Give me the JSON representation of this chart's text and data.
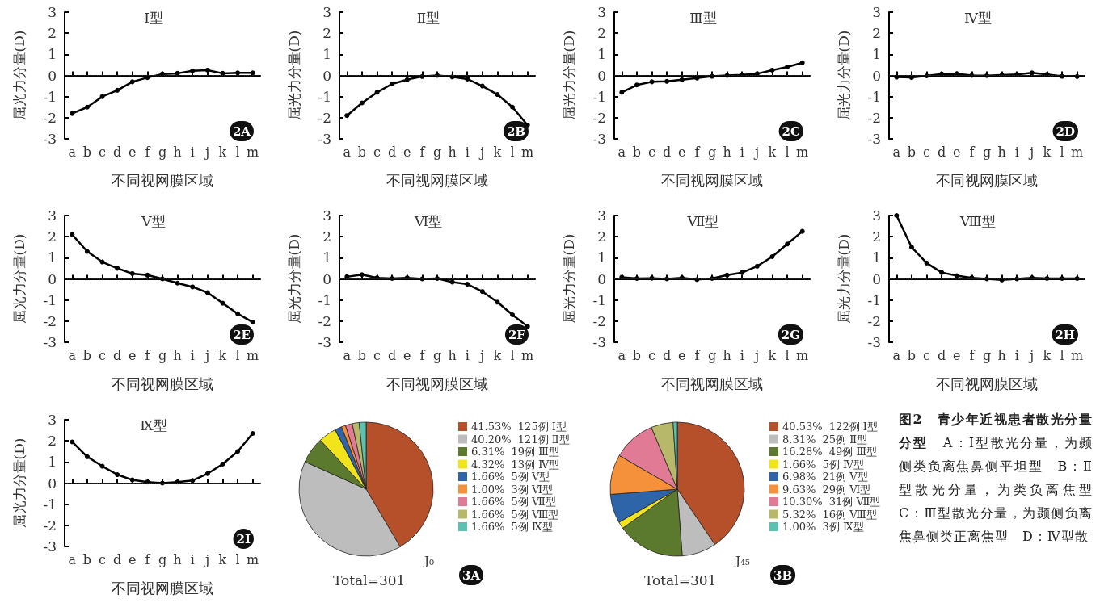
{
  "chart_data": [
    {
      "type": "line",
      "title": "Ⅰ型",
      "xlabel": "不同视网膜区域",
      "ylabel": "屈光力分量(D)",
      "categories": [
        "a",
        "b",
        "c",
        "d",
        "e",
        "f",
        "g",
        "h",
        "i",
        "j",
        "k",
        "l",
        "m"
      ],
      "values": [
        -1.8,
        -1.5,
        -1.0,
        -0.7,
        -0.3,
        -0.1,
        0.07,
        0.1,
        0.22,
        0.25,
        0.1,
        0.12,
        0.12
      ],
      "color": "#000000",
      "ylim": [
        -3,
        3
      ],
      "yticks": [
        -3,
        -2,
        -1,
        0,
        1,
        2,
        3
      ],
      "marker": "circle",
      "ref_lines": [
        {
          "axis": "y",
          "value": 0,
          "line_style": "dotted"
        }
      ],
      "annotations": [
        "2A"
      ]
    },
    {
      "type": "line",
      "title": "Ⅱ型",
      "xlabel": "不同视网膜区域",
      "ylabel": "屈光力分量(D)",
      "categories": [
        "a",
        "b",
        "c",
        "d",
        "e",
        "f",
        "g",
        "h",
        "i",
        "j",
        "k",
        "l",
        "m"
      ],
      "values": [
        -1.9,
        -1.3,
        -0.8,
        -0.4,
        -0.2,
        -0.05,
        0,
        -0.07,
        -0.17,
        -0.5,
        -0.9,
        -1.5,
        -2.35
      ],
      "color": "#000000",
      "ylim": [
        -3,
        3
      ],
      "yticks": [
        -3,
        -2,
        -1,
        0,
        1,
        2,
        3
      ],
      "marker": "circle",
      "ref_lines": [
        {
          "axis": "y",
          "value": 0,
          "line_style": "dotted"
        }
      ],
      "annotations": [
        "2B"
      ]
    },
    {
      "type": "line",
      "title": "Ⅲ型",
      "xlabel": "不同视网膜区域",
      "ylabel": "屈光力分量(D)",
      "categories": [
        "a",
        "b",
        "c",
        "d",
        "e",
        "f",
        "g",
        "h",
        "i",
        "j",
        "k",
        "l",
        "m"
      ],
      "values": [
        -0.8,
        -0.45,
        -0.3,
        -0.28,
        -0.2,
        -0.12,
        -0.04,
        0,
        0.03,
        0.08,
        0.25,
        0.4,
        0.6
      ],
      "color": "#000000",
      "ylim": [
        -3,
        3
      ],
      "yticks": [
        -3,
        -2,
        -1,
        0,
        1,
        2,
        3
      ],
      "marker": "circle",
      "ref_lines": [
        {
          "axis": "y",
          "value": 0,
          "line_style": "dotted"
        }
      ],
      "annotations": [
        "2C"
      ]
    },
    {
      "type": "line",
      "title": "Ⅳ型",
      "xlabel": "不同视网膜区域",
      "ylabel": "屈光力分量(D)",
      "categories": [
        "a",
        "b",
        "c",
        "d",
        "e",
        "f",
        "g",
        "h",
        "i",
        "j",
        "k",
        "l",
        "m"
      ],
      "values": [
        -0.08,
        -0.1,
        -0.02,
        0.07,
        0.08,
        0,
        -0.01,
        0.02,
        0.05,
        0.12,
        0.05,
        -0.04,
        -0.05
      ],
      "color": "#000000",
      "ylim": [
        -3,
        3
      ],
      "yticks": [
        -3,
        -2,
        -1,
        0,
        1,
        2,
        3
      ],
      "marker": "circle",
      "ref_lines": [
        {
          "axis": "y",
          "value": 0,
          "line_style": "dotted"
        }
      ],
      "annotations": [
        "2D"
      ]
    },
    {
      "type": "line",
      "title": "Ⅴ型",
      "xlabel": "不同视网膜区域",
      "ylabel": "屈光力分量(D)",
      "categories": [
        "a",
        "b",
        "c",
        "d",
        "e",
        "f",
        "g",
        "h",
        "i",
        "j",
        "k",
        "l",
        "m"
      ],
      "values": [
        2.1,
        1.3,
        0.8,
        0.5,
        0.25,
        0.18,
        0,
        -0.2,
        -0.38,
        -0.65,
        -1.15,
        -1.65,
        -2.05
      ],
      "color": "#000000",
      "ylim": [
        -3,
        3
      ],
      "yticks": [
        -3,
        -2,
        -1,
        0,
        1,
        2,
        3
      ],
      "marker": "circle",
      "ref_lines": [
        {
          "axis": "y",
          "value": 0,
          "line_style": "dotted"
        }
      ],
      "annotations": [
        "2E"
      ]
    },
    {
      "type": "line",
      "title": "Ⅵ型",
      "xlabel": "不同视网膜区域",
      "ylabel": "屈光力分量(D)",
      "categories": [
        "a",
        "b",
        "c",
        "d",
        "e",
        "f",
        "g",
        "h",
        "i",
        "j",
        "k",
        "l",
        "m"
      ],
      "values": [
        0.1,
        0.2,
        0.05,
        0.02,
        0.05,
        0,
        0.02,
        -0.15,
        -0.25,
        -0.6,
        -1.1,
        -1.7,
        -2.25
      ],
      "color": "#000000",
      "ylim": [
        -3,
        3
      ],
      "yticks": [
        -3,
        -2,
        -1,
        0,
        1,
        2,
        3
      ],
      "marker": "circle",
      "ref_lines": [
        {
          "axis": "y",
          "value": 0,
          "line_style": "dotted"
        }
      ],
      "annotations": [
        "2F"
      ]
    },
    {
      "type": "line",
      "title": "Ⅶ型",
      "xlabel": "不同视网膜区域",
      "ylabel": "屈光力分量(D)",
      "categories": [
        "a",
        "b",
        "c",
        "d",
        "e",
        "f",
        "g",
        "h",
        "i",
        "j",
        "k",
        "l",
        "m"
      ],
      "values": [
        0.08,
        0.02,
        0.03,
        0,
        0.05,
        -0.03,
        0.02,
        0.18,
        0.3,
        0.6,
        1.05,
        1.65,
        2.25
      ],
      "color": "#000000",
      "ylim": [
        -3,
        3
      ],
      "yticks": [
        -3,
        -2,
        -1,
        0,
        1,
        2,
        3
      ],
      "marker": "circle",
      "ref_lines": [
        {
          "axis": "y",
          "value": 0,
          "line_style": "dotted"
        }
      ],
      "annotations": [
        "2G"
      ]
    },
    {
      "type": "line",
      "title": "Ⅷ型",
      "xlabel": "不同视网膜区域",
      "ylabel": "屈光力分量(D)",
      "categories": [
        "a",
        "b",
        "c",
        "d",
        "e",
        "f",
        "g",
        "h",
        "i",
        "j",
        "k",
        "l",
        "m"
      ],
      "values": [
        3.0,
        1.5,
        0.75,
        0.3,
        0.15,
        0.05,
        0,
        -0.05,
        0,
        0.05,
        0.02,
        0.02,
        0.02
      ],
      "color": "#000000",
      "ylim": [
        -3,
        3
      ],
      "yticks": [
        -3,
        -2,
        -1,
        0,
        1,
        2,
        3
      ],
      "marker": "circle",
      "ref_lines": [
        {
          "axis": "y",
          "value": 0,
          "line_style": "dotted"
        }
      ],
      "annotations": [
        "2H"
      ]
    },
    {
      "type": "line",
      "title": "Ⅸ型",
      "xlabel": "不同视网膜区域",
      "ylabel": "屈光力分量(D)",
      "categories": [
        "a",
        "b",
        "c",
        "d",
        "e",
        "f",
        "g",
        "h",
        "i",
        "j",
        "k",
        "l",
        "m"
      ],
      "values": [
        1.95,
        1.25,
        0.8,
        0.4,
        0.15,
        0.05,
        0,
        0.05,
        0.12,
        0.45,
        0.9,
        1.5,
        2.35
      ],
      "color": "#000000",
      "ylim": [
        -3,
        3
      ],
      "yticks": [
        -3,
        -2,
        -1,
        0,
        1,
        2,
        3
      ],
      "marker": "circle",
      "ref_lines": [
        {
          "axis": "y",
          "value": 0,
          "line_style": "dotted"
        }
      ],
      "annotations": [
        "2I"
      ]
    },
    {
      "type": "pie",
      "categories": [
        "125例 Ⅰ型",
        "121例 Ⅱ型",
        "19例 Ⅲ型",
        "13例 Ⅳ型",
        "5例 Ⅴ型",
        "3例 Ⅵ型",
        "5例 Ⅶ型",
        "5例 Ⅷ型",
        "5例 Ⅸ型"
      ],
      "values": [
        41.53,
        40.2,
        6.31,
        4.32,
        1.66,
        1.0,
        1.66,
        1.66,
        1.66
      ],
      "value_labels": [
        "41.53%",
        "40.20%",
        "6.31%",
        "4.32%",
        "1.66%",
        "1.00%",
        "1.66%",
        "1.66%",
        "1.66%"
      ],
      "colors": [
        "#b5502a",
        "#bdbdbd",
        "#5b7a2e",
        "#f2e41c",
        "#2e64a8",
        "#f5913a",
        "#e07a95",
        "#b8b86a",
        "#5cc2b0"
      ],
      "legend": "right",
      "annotations": [
        "J₀",
        "Total=301",
        "3A"
      ]
    },
    {
      "type": "pie",
      "categories": [
        "122例 Ⅰ型",
        "25例 Ⅱ型",
        "49例 Ⅲ型",
        "5例 Ⅳ型",
        "21例 Ⅴ型",
        "29例 Ⅵ型",
        "31例 Ⅶ型",
        "16例 Ⅷ型",
        "3例 Ⅸ型"
      ],
      "values": [
        40.53,
        8.31,
        16.28,
        1.66,
        6.98,
        9.63,
        10.3,
        5.32,
        1.0
      ],
      "value_labels": [
        "40.53%",
        "8.31%",
        "16.28%",
        "1.66%",
        "6.98%",
        "9.63%",
        "10.30%",
        "5.32%",
        "1.00%"
      ],
      "colors": [
        "#b5502a",
        "#bdbdbd",
        "#5b7a2e",
        "#f2e41c",
        "#2e64a8",
        "#f5913a",
        "#e07a95",
        "#b8b86a",
        "#5cc2b0"
      ],
      "legend": "right",
      "annotations": [
        "J₄₅",
        "Total=301",
        "3B"
      ]
    },
    {
      "type": "other",
      "title": "图2　青少年近视患者散光分量分型",
      "annotations": [
        "A：Ⅰ型散光分量，为颞侧类负离焦鼻侧平坦型　B：Ⅱ型散光分量，为类负离焦型　C：Ⅲ型散光分量，为颞侧负离焦鼻侧类正离焦型　D：Ⅳ型散"
      ]
    }
  ]
}
